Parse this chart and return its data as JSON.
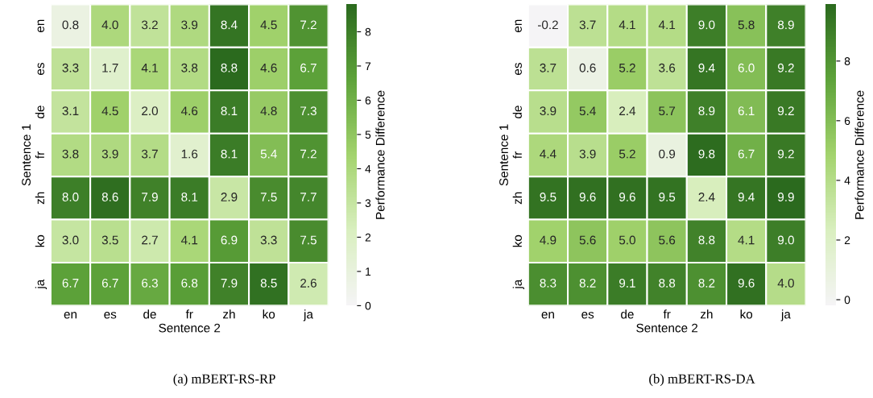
{
  "chart_data": [
    {
      "type": "heatmap",
      "xlabel": "Sentence 2",
      "ylabel": "Sentence 1",
      "clabel": "Performance Difference",
      "categories": [
        "en",
        "es",
        "de",
        "fr",
        "zh",
        "ko",
        "ja"
      ],
      "y_categories": [
        "en",
        "es",
        "de",
        "fr",
        "zh",
        "ko",
        "ja"
      ],
      "cells": [
        [
          0.8,
          4.0,
          3.2,
          3.9,
          8.4,
          4.5,
          7.2
        ],
        [
          3.3,
          1.7,
          4.1,
          3.8,
          8.8,
          4.6,
          6.7
        ],
        [
          3.1,
          4.5,
          2.0,
          4.6,
          8.1,
          4.8,
          7.3
        ],
        [
          3.8,
          3.9,
          3.7,
          1.6,
          8.1,
          5.4,
          7.2
        ],
        [
          8.0,
          8.6,
          7.9,
          8.1,
          2.9,
          7.5,
          7.7
        ],
        [
          3.0,
          3.5,
          2.7,
          4.1,
          6.9,
          3.3,
          7.5
        ],
        [
          6.7,
          6.7,
          6.3,
          6.8,
          7.9,
          8.5,
          2.6
        ]
      ],
      "cell_labels": [
        [
          "0.8",
          "4.0",
          "3.2",
          "3.9",
          "8.4",
          "4.5",
          "7.2"
        ],
        [
          "3.3",
          "1.7",
          "4.1",
          "3.8",
          "8.8",
          "4.6",
          "6.7"
        ],
        [
          "3.1",
          "4.5",
          "2.0",
          "4.6",
          "8.1",
          "4.8",
          "7.3"
        ],
        [
          "3.8",
          "3.9",
          "3.7",
          "1.6",
          "8.1",
          "5.4",
          "7.2"
        ],
        [
          "8.0",
          "8.6",
          "7.9",
          "8.1",
          "2.9",
          "7.5",
          "7.7"
        ],
        [
          "3.0",
          "3.5",
          "2.7",
          "4.1",
          "6.9",
          "3.3",
          "7.5"
        ],
        [
          "6.7",
          "6.7",
          "6.3",
          "6.8",
          "7.9",
          "8.5",
          "2.6"
        ]
      ],
      "clim": [
        0,
        8.8
      ],
      "cticks": [
        0,
        1,
        2,
        3,
        4,
        5,
        6,
        7,
        8
      ],
      "annotations": [
        "(a) mBERT-RS-RP"
      ]
    },
    {
      "type": "heatmap",
      "xlabel": "Sentence 2",
      "ylabel": "Sentence 1",
      "clabel": "Performance Difference",
      "categories": [
        "en",
        "es",
        "de",
        "fr",
        "zh",
        "ko",
        "ja"
      ],
      "y_categories": [
        "en",
        "es",
        "de",
        "fr",
        "zh",
        "ko",
        "ja"
      ],
      "cells": [
        [
          -0.2,
          3.7,
          4.1,
          4.1,
          9.0,
          5.8,
          8.9
        ],
        [
          3.7,
          0.6,
          5.2,
          3.6,
          9.4,
          6.0,
          9.2
        ],
        [
          3.9,
          5.4,
          2.4,
          5.7,
          8.9,
          6.1,
          9.2
        ],
        [
          4.4,
          3.9,
          5.2,
          0.9,
          9.8,
          6.7,
          9.2
        ],
        [
          9.5,
          9.6,
          9.6,
          9.5,
          2.4,
          9.4,
          9.9
        ],
        [
          4.9,
          5.6,
          5.0,
          5.6,
          8.8,
          4.1,
          9.0
        ],
        [
          8.3,
          8.2,
          9.1,
          8.8,
          8.2,
          9.6,
          4.0
        ]
      ],
      "cell_labels": [
        [
          "-0.2",
          "3.7",
          "4.1",
          "4.1",
          "9.0",
          "5.8",
          "8.9"
        ],
        [
          "3.7",
          "0.6",
          "5.2",
          "3.6",
          "9.4",
          "6.0",
          "9.2"
        ],
        [
          "3.9",
          "5.4",
          "2.4",
          "5.7",
          "8.9",
          "6.1",
          "9.2"
        ],
        [
          "4.4",
          "3.9",
          "5.2",
          "0.9",
          "9.8",
          "6.7",
          "9.2"
        ],
        [
          "9.5",
          "9.6",
          "9.6",
          "9.5",
          "2.4",
          "9.4",
          "9.9"
        ],
        [
          "4.9",
          "5.6",
          "5.0",
          "5.6",
          "8.8",
          "4.1",
          "9.0"
        ],
        [
          "8.3",
          "8.2",
          "9.1",
          "8.8",
          "8.2",
          "9.6",
          "4.0"
        ]
      ],
      "clim": [
        -0.2,
        9.9
      ],
      "cticks": [
        0,
        2,
        4,
        6,
        8
      ],
      "annotations": [
        "(b) mBERT-RS-DA"
      ]
    }
  ]
}
